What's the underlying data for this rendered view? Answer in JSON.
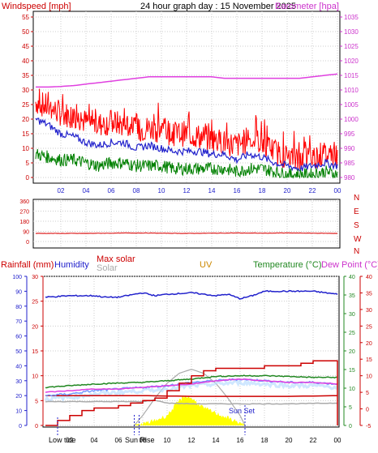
{
  "header": {
    "title": "24 hour graph day : 15 November 2025",
    "left_label": "Windspeed [mph]",
    "right_label": "Barometer [hpa]"
  },
  "panel3_labels": {
    "rainfall": "Rainfall (mm)",
    "humidity": "Humidity",
    "max_solar": "Max solar",
    "solar": "Solar",
    "uv": "UV",
    "temperature": "Temperature (°C)",
    "dew_point": "Dew Point (°C)"
  },
  "markers": {
    "low_tide": "Low tide",
    "sun_rise": "Sun Rise",
    "sun_set": "Sun Set"
  },
  "colors": {
    "wind_gust": "#ff0000",
    "wind_avg": "#2222cc",
    "wind_min": "#008000",
    "barometer": "#e040e0",
    "direction": "#dd2222",
    "humidity": "#2222cc",
    "rain_axis": "#cc0000",
    "temperature": "#228822",
    "dew_point": "#cc0000",
    "solar": "#aaaaaa",
    "uv_axis": "#cc8800",
    "solar_fill": "#ffff00",
    "rain_accum": "#cc0000",
    "temp_line": "#e040e0",
    "feels_band": "#bbddff"
  },
  "chart_data": [
    {
      "type": "line",
      "title": "24 hour graph day : 15 November 2025",
      "xticks": [
        "02",
        "04",
        "06",
        "08",
        "10",
        "12",
        "14",
        "16",
        "18",
        "20",
        "22",
        "00"
      ],
      "yticks_left": [
        "0",
        "5",
        "10",
        "15",
        "20",
        "25",
        "30",
        "35",
        "40",
        "45",
        "50",
        "55"
      ],
      "yticks_right": [
        "980",
        "985",
        "990",
        "995",
        "1000",
        "1005",
        "1010",
        "1015",
        "1020",
        "1025",
        "1030",
        "1035"
      ],
      "ylim_left": [
        0,
        57
      ],
      "ylim_right": [
        978,
        1036
      ],
      "series": [
        {
          "name": "Windspeed [mph]",
          "axis": "left",
          "x": [
            0,
            1,
            2,
            3,
            4,
            5,
            6,
            7,
            8,
            9,
            10,
            11,
            12,
            13,
            14,
            15,
            16,
            17,
            18,
            19,
            20,
            21,
            22,
            23,
            24
          ],
          "values": [
            26,
            24,
            22,
            21,
            19,
            18,
            19,
            18,
            16,
            17,
            16,
            15,
            15,
            14,
            13,
            12,
            11,
            13,
            12,
            9,
            7,
            6,
            7,
            8,
            7
          ]
        },
        {
          "axis": "left",
          "x": [
            0,
            1,
            2,
            3,
            4,
            5,
            6,
            7,
            8,
            9,
            10,
            11,
            12,
            13,
            14,
            15,
            16,
            17,
            18,
            19,
            20,
            21,
            22,
            23,
            24
          ],
          "values": [
            20,
            18,
            15,
            14,
            12,
            11,
            12,
            12,
            10,
            11,
            10,
            9,
            9,
            9,
            8,
            8,
            6,
            8,
            7,
            5,
            4,
            3,
            4,
            5,
            4
          ]
        },
        {
          "axis": "left",
          "x": [
            0,
            1,
            2,
            3,
            4,
            5,
            6,
            7,
            8,
            9,
            10,
            11,
            12,
            13,
            14,
            15,
            16,
            17,
            18,
            19,
            20,
            21,
            22,
            23,
            24
          ],
          "values": [
            8,
            7,
            6,
            6,
            5,
            4,
            5,
            5,
            4,
            4,
            4,
            3,
            3,
            3,
            3,
            3,
            2,
            3,
            3,
            2,
            1,
            1,
            1,
            2,
            1
          ]
        },
        {
          "name": "Barometer [hpa]",
          "axis": "right",
          "x": [
            0,
            1,
            2,
            3,
            4,
            5,
            6,
            7,
            8,
            9,
            10,
            11,
            12,
            13,
            14,
            15,
            16,
            17,
            18,
            19,
            20,
            21,
            22,
            23,
            24
          ],
          "values": [
            1011,
            1011,
            1011.2,
            1011.5,
            1012,
            1012.5,
            1013,
            1013.5,
            1014,
            1014.5,
            1014.5,
            1014.5,
            1014.5,
            1014.5,
            1014.5,
            1014,
            1014,
            1014,
            1014,
            1014,
            1014,
            1014,
            1014.5,
            1015,
            1015.5
          ]
        }
      ]
    },
    {
      "type": "line",
      "yticks_left": [
        "0",
        "90",
        "180",
        "270",
        "360"
      ],
      "yticks_right": [
        "N",
        "W",
        "S",
        "E",
        "N"
      ],
      "ylim": [
        0,
        360
      ],
      "series": [
        {
          "x": [
            0,
            2,
            4,
            6,
            8,
            10,
            12,
            14,
            16,
            18,
            20,
            22,
            24
          ],
          "values": [
            72,
            72,
            72,
            74,
            76,
            74,
            72,
            74,
            76,
            74,
            76,
            74,
            72
          ]
        }
      ]
    },
    {
      "type": "line",
      "xticks": [
        "02",
        "04",
        "06",
        "08",
        "10",
        "12",
        "14",
        "16",
        "18",
        "20",
        "22",
        "00"
      ],
      "yticks_humidity": [
        "0",
        "10",
        "20",
        "30",
        "40",
        "50",
        "60",
        "70",
        "80",
        "90",
        "100"
      ],
      "yticks_rain": [
        "0",
        "5",
        "10",
        "15",
        "20",
        "25",
        "30"
      ],
      "yticks_uv": [
        "0",
        "5",
        "10",
        "15",
        "20",
        "25",
        "30",
        "35",
        "40"
      ],
      "yticks_temp": [
        "-5",
        "0",
        "5",
        "10",
        "15",
        "20",
        "25",
        "30",
        "35",
        "40"
      ],
      "series": [
        {
          "name": "Humidity",
          "x": [
            0,
            2,
            4,
            5,
            6,
            8,
            9,
            10,
            12,
            14,
            15,
            16,
            17,
            18,
            20,
            22,
            23,
            24
          ],
          "values": [
            86,
            87,
            87,
            86,
            86,
            89,
            87,
            88,
            89,
            87,
            88,
            85,
            87,
            90,
            90,
            90,
            89,
            88
          ]
        },
        {
          "x": [
            0,
            4,
            8,
            12,
            16,
            20,
            24
          ],
          "values": [
            20,
            20,
            20,
            19.5,
            19.5,
            19.5,
            20
          ]
        },
        {
          "name": "Solar",
          "x": [
            0,
            4,
            8,
            9,
            10,
            12,
            16,
            20,
            24
          ],
          "values": [
            16,
            16,
            16,
            17,
            15,
            14.5,
            14.5,
            14.5,
            15
          ]
        },
        {
          "name": "Temperature (°C)",
          "x": [
            0,
            2,
            4,
            6,
            8,
            10,
            12,
            14,
            16,
            18,
            20,
            22,
            24
          ],
          "values": [
            6.5,
            7,
            7.5,
            7.8,
            8,
            8.5,
            9,
            9.8,
            10,
            10,
            9.8,
            9.5,
            9.5
          ]
        },
        {
          "name": "Dew Point (°C)",
          "x": [
            0,
            2,
            4,
            6,
            8,
            10,
            12,
            14,
            16,
            18,
            20,
            22,
            24
          ],
          "values": [
            4,
            4.5,
            5.5,
            6,
            6.5,
            7,
            8,
            8.5,
            9,
            8.5,
            8,
            8,
            7.5
          ]
        },
        {
          "x": [
            0,
            1,
            2,
            3,
            4,
            5,
            6,
            7,
            8,
            9,
            10,
            11,
            12,
            13,
            14,
            15,
            16,
            17,
            18,
            19,
            20,
            21,
            22,
            23,
            24
          ],
          "values": [
            0,
            1,
            2,
            3,
            3.5,
            3.5,
            4,
            4.5,
            5,
            5.5,
            7,
            8.5,
            10,
            11,
            11.5,
            11.5,
            11.5,
            11.5,
            12,
            12,
            12,
            12.5,
            13,
            13,
            13
          ]
        },
        {
          "x": [
            0,
            2,
            4,
            6,
            8,
            10,
            12,
            14,
            16,
            18,
            20,
            22,
            24
          ],
          "values": [
            5,
            5.5,
            6,
            6,
            6.5,
            7,
            7.5,
            8.5,
            9,
            8.5,
            8,
            8,
            7.5
          ]
        },
        {
          "name": "Max solar",
          "x": [
            7.3,
            8,
            9,
            10,
            11,
            12,
            13,
            14,
            15,
            16,
            16.4
          ],
          "values": [
            0,
            2,
            5.5,
            8.5,
            10.5,
            11.3,
            10.5,
            8.5,
            5.5,
            2,
            0
          ]
        },
        {
          "name": "UV",
          "x": [
            7.3,
            8,
            9,
            10,
            10.5,
            11,
            11.5,
            12,
            12.5,
            13,
            14,
            15,
            16,
            16.4
          ],
          "values": [
            0,
            0.3,
            1,
            2,
            3.5,
            5,
            6,
            5.5,
            4.5,
            3.5,
            2.5,
            1.5,
            0.5,
            0
          ]
        }
      ]
    }
  ]
}
